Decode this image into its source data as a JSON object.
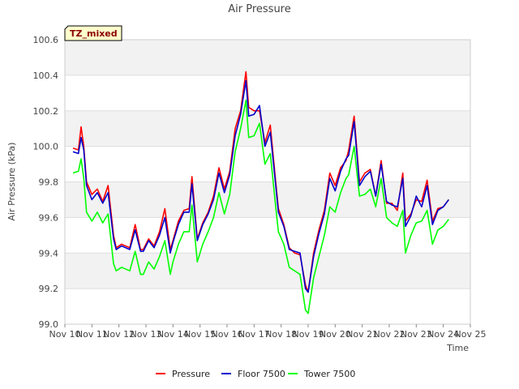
{
  "chart_data": {
    "type": "line",
    "title": "Air Pressure",
    "xlabel": "Time",
    "ylabel": "Air Pressure (kPa)",
    "badge": "TZ_mixed",
    "xlim": [
      10,
      25
    ],
    "ylim": [
      99.0,
      100.6
    ],
    "x_ticks": [
      {
        "value": 10,
        "label": "Nov 10"
      },
      {
        "value": 11,
        "label": "Nov 11"
      },
      {
        "value": 12,
        "label": "Nov 12"
      },
      {
        "value": 13,
        "label": "Nov 13"
      },
      {
        "value": 14,
        "label": "Nov 14"
      },
      {
        "value": 15,
        "label": "Nov 15"
      },
      {
        "value": 16,
        "label": "Nov 16"
      },
      {
        "value": 17,
        "label": "Nov 17"
      },
      {
        "value": 18,
        "label": "Nov 18"
      },
      {
        "value": 19,
        "label": "Nov 19"
      },
      {
        "value": 20,
        "label": "Nov 20"
      },
      {
        "value": 21,
        "label": "Nov 21"
      },
      {
        "value": 22,
        "label": "Nov 22"
      },
      {
        "value": 23,
        "label": "Nov 23"
      },
      {
        "value": 24,
        "label": "Nov 24"
      },
      {
        "value": 25,
        "label": "Nov 25"
      }
    ],
    "y_ticks": [
      {
        "value": 99.0,
        "label": "99.0"
      },
      {
        "value": 99.2,
        "label": "99.2"
      },
      {
        "value": 99.4,
        "label": "99.4"
      },
      {
        "value": 99.6,
        "label": "99.6"
      },
      {
        "value": 99.8,
        "label": "99.8"
      },
      {
        "value": 100.0,
        "label": "100.0"
      },
      {
        "value": 100.2,
        "label": "100.2"
      },
      {
        "value": 100.4,
        "label": "100.4"
      },
      {
        "value": 100.6,
        "label": "100.6"
      }
    ],
    "legend_position": "bottom-center",
    "series": [
      {
        "name": "Pressure",
        "color": "#ff0000",
        "x": [
          10.3,
          10.5,
          10.6,
          10.7,
          10.8,
          11.0,
          11.2,
          11.4,
          11.6,
          11.8,
          11.9,
          12.1,
          12.4,
          12.6,
          12.8,
          12.9,
          13.1,
          13.3,
          13.5,
          13.7,
          13.9,
          14.0,
          14.2,
          14.4,
          14.6,
          14.7,
          14.9,
          15.1,
          15.3,
          15.5,
          15.7,
          15.9,
          16.1,
          16.3,
          16.5,
          16.7,
          16.8,
          17.0,
          17.2,
          17.4,
          17.6,
          17.8,
          17.9,
          18.1,
          18.3,
          18.5,
          18.7,
          18.9,
          19.0,
          19.2,
          19.4,
          19.6,
          19.8,
          20.0,
          20.2,
          20.4,
          20.5,
          20.7,
          20.9,
          21.1,
          21.3,
          21.5,
          21.7,
          21.9,
          22.1,
          22.3,
          22.5,
          22.6,
          22.8,
          23.0,
          23.2,
          23.4,
          23.6,
          23.8,
          24.0,
          24.2
        ],
        "y": [
          99.99,
          99.98,
          100.11,
          100.0,
          99.8,
          99.73,
          99.76,
          99.69,
          99.78,
          99.5,
          99.43,
          99.45,
          99.43,
          99.56,
          99.42,
          99.42,
          99.48,
          99.44,
          99.52,
          99.65,
          99.42,
          99.47,
          99.58,
          99.64,
          99.65,
          99.83,
          99.48,
          99.57,
          99.63,
          99.72,
          99.88,
          99.76,
          99.86,
          100.1,
          100.2,
          100.42,
          100.22,
          100.2,
          100.2,
          100.02,
          100.12,
          99.8,
          99.65,
          99.56,
          99.43,
          99.4,
          99.39,
          99.22,
          99.18,
          99.4,
          99.53,
          99.64,
          99.85,
          99.78,
          99.88,
          99.92,
          99.98,
          100.17,
          99.8,
          99.85,
          99.87,
          99.72,
          99.92,
          99.68,
          99.68,
          99.64,
          99.85,
          99.58,
          99.62,
          99.7,
          99.69,
          99.81,
          99.58,
          99.65,
          99.66,
          99.7
        ]
      },
      {
        "name": "Floor 7500",
        "color": "#0000cc",
        "x": [
          10.3,
          10.5,
          10.6,
          10.7,
          10.8,
          11.0,
          11.2,
          11.4,
          11.6,
          11.8,
          11.9,
          12.1,
          12.4,
          12.6,
          12.8,
          12.9,
          13.1,
          13.3,
          13.5,
          13.7,
          13.9,
          14.0,
          14.2,
          14.4,
          14.6,
          14.7,
          14.9,
          15.1,
          15.3,
          15.5,
          15.7,
          15.9,
          16.1,
          16.3,
          16.5,
          16.7,
          16.8,
          17.0,
          17.2,
          17.4,
          17.6,
          17.8,
          17.9,
          18.1,
          18.3,
          18.5,
          18.7,
          18.9,
          19.0,
          19.2,
          19.4,
          19.6,
          19.8,
          20.0,
          20.2,
          20.4,
          20.5,
          20.7,
          20.9,
          21.1,
          21.3,
          21.5,
          21.7,
          21.9,
          22.1,
          22.3,
          22.5,
          22.6,
          22.8,
          23.0,
          23.2,
          23.4,
          23.6,
          23.8,
          24.0,
          24.2
        ],
        "y": [
          99.97,
          99.96,
          100.05,
          99.98,
          99.78,
          99.7,
          99.74,
          99.68,
          99.74,
          99.48,
          99.42,
          99.44,
          99.42,
          99.53,
          99.41,
          99.41,
          99.47,
          99.43,
          99.5,
          99.6,
          99.4,
          99.46,
          99.56,
          99.63,
          99.63,
          99.79,
          99.47,
          99.56,
          99.62,
          99.7,
          99.85,
          99.74,
          99.84,
          100.06,
          100.18,
          100.37,
          100.17,
          100.18,
          100.23,
          100.0,
          100.08,
          99.78,
          99.63,
          99.55,
          99.42,
          99.41,
          99.4,
          99.2,
          99.18,
          99.38,
          99.51,
          99.62,
          99.82,
          99.75,
          99.86,
          99.93,
          99.95,
          100.14,
          99.78,
          99.83,
          99.86,
          99.72,
          99.9,
          99.69,
          99.67,
          99.66,
          99.82,
          99.55,
          99.61,
          99.72,
          99.66,
          99.78,
          99.56,
          99.64,
          99.66,
          99.7
        ]
      },
      {
        "name": "Tower 7500",
        "color": "#00ff00",
        "x": [
          10.3,
          10.5,
          10.6,
          10.7,
          10.8,
          11.0,
          11.2,
          11.4,
          11.6,
          11.8,
          11.9,
          12.1,
          12.4,
          12.6,
          12.8,
          12.9,
          13.1,
          13.3,
          13.5,
          13.7,
          13.9,
          14.0,
          14.2,
          14.4,
          14.6,
          14.7,
          14.9,
          15.1,
          15.3,
          15.5,
          15.7,
          15.9,
          16.1,
          16.3,
          16.5,
          16.7,
          16.8,
          17.0,
          17.2,
          17.4,
          17.6,
          17.8,
          17.9,
          18.1,
          18.3,
          18.5,
          18.7,
          18.9,
          19.0,
          19.2,
          19.4,
          19.6,
          19.8,
          20.0,
          20.2,
          20.4,
          20.5,
          20.7,
          20.9,
          21.1,
          21.3,
          21.5,
          21.7,
          21.9,
          22.1,
          22.3,
          22.5,
          22.6,
          22.8,
          23.0,
          23.2,
          23.4,
          23.6,
          23.8,
          24.0,
          24.2
        ],
        "y": [
          99.85,
          99.86,
          99.93,
          99.82,
          99.63,
          99.58,
          99.63,
          99.57,
          99.62,
          99.34,
          99.3,
          99.32,
          99.3,
          99.41,
          99.28,
          99.28,
          99.35,
          99.31,
          99.38,
          99.47,
          99.28,
          99.35,
          99.45,
          99.52,
          99.52,
          99.67,
          99.35,
          99.45,
          99.52,
          99.6,
          99.74,
          99.62,
          99.73,
          99.97,
          100.1,
          100.26,
          100.05,
          100.06,
          100.13,
          99.9,
          99.96,
          99.66,
          99.52,
          99.45,
          99.32,
          99.3,
          99.28,
          99.08,
          99.06,
          99.26,
          99.38,
          99.5,
          99.66,
          99.63,
          99.74,
          99.82,
          99.84,
          100.0,
          99.72,
          99.73,
          99.76,
          99.66,
          99.82,
          99.6,
          99.57,
          99.55,
          99.64,
          99.4,
          99.5,
          99.57,
          99.58,
          99.64,
          99.45,
          99.53,
          99.55,
          99.59
        ]
      }
    ]
  }
}
